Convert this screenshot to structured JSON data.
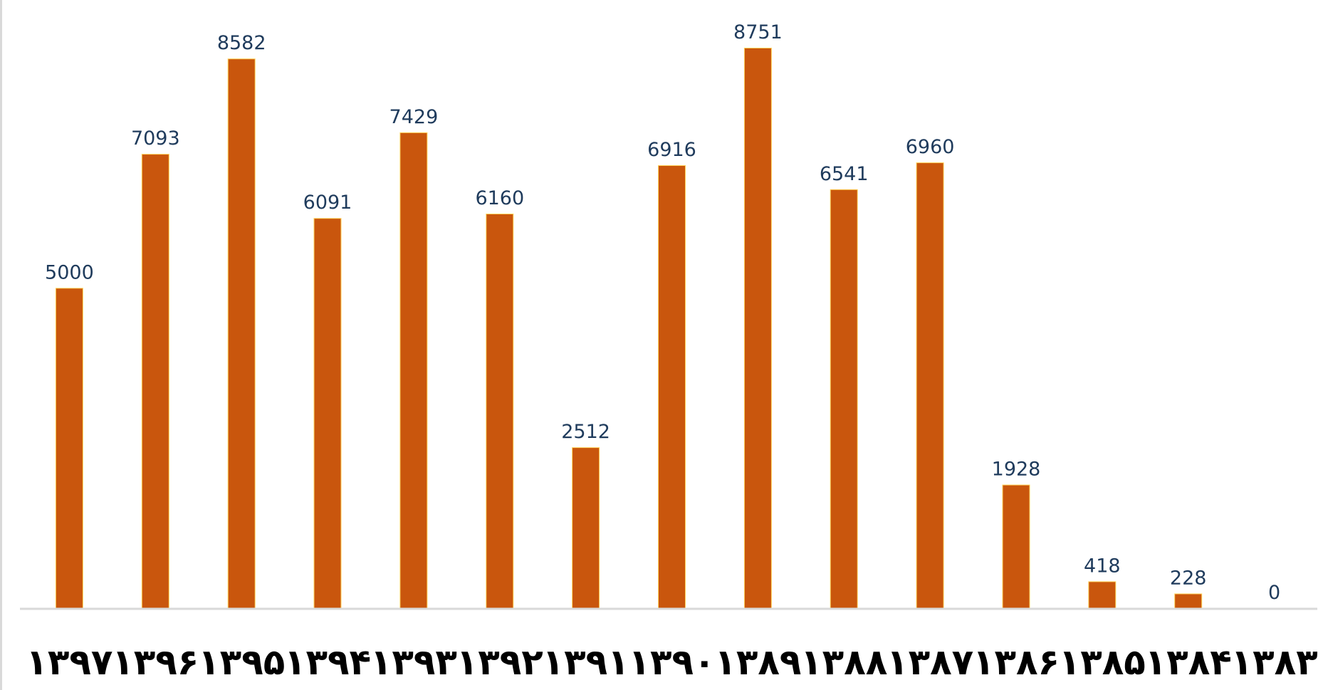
{
  "chart_data": {
    "type": "bar",
    "categories": [
      "۱۳۹۷",
      "۱۳۹۶",
      "۱۳۹۵",
      "۱۳۹۴",
      "۱۳۹۳",
      "۱۳۹۲",
      "۱۳۹۱",
      "۱۳۹۰",
      "۱۳۸۹",
      "۱۳۸۸",
      "۱۳۸۷",
      "۱۳۸۶",
      "۱۳۸۵",
      "۱۳۸۴",
      "۱۳۸۳"
    ],
    "values": [
      5000,
      7093,
      8582,
      6091,
      7429,
      6160,
      2512,
      6916,
      8751,
      6541,
      6960,
      1928,
      418,
      228,
      0
    ],
    "data_labels": [
      "5000",
      "7093",
      "8582",
      "6091",
      "7429",
      "6160",
      "2512",
      "6916",
      "8751",
      "6541",
      "6960",
      "1928",
      "418",
      "228",
      "0"
    ],
    "title": "",
    "xlabel": "",
    "ylabel": "",
    "ylim": [
      0,
      9000
    ],
    "grid": false,
    "legend": "none",
    "colors": {
      "bar": "#c9560d",
      "bar_edge": "#ffd35a",
      "value_label": "#1f3b5c",
      "axis": "#d9d9d9",
      "tick_label": "#000000"
    }
  }
}
